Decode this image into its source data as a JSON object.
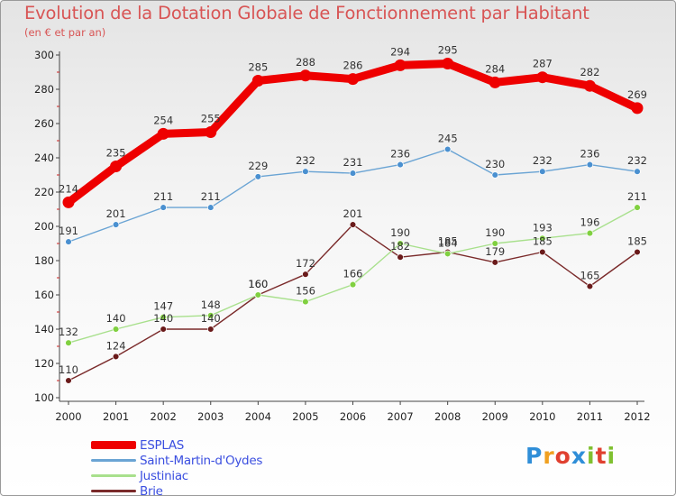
{
  "title": "Evolution de la Dotation Globale de Fonctionnement par Habitant",
  "subtitle": "(en € et par an)",
  "logo": {
    "text": "Proxiti",
    "letters": [
      "P",
      "r",
      "o",
      "x",
      "i",
      "t",
      "i"
    ],
    "colors": [
      "#2f8ed8",
      "#f0a020",
      "#e04030",
      "#2f8ed8",
      "#80c030",
      "#e04030",
      "#80c030"
    ]
  },
  "chart_data": {
    "type": "line",
    "title": "Evolution de la Dotation Globale de Fonctionnement par Habitant",
    "subtitle": "(en € et par an)",
    "xlabel": "",
    "ylabel": "",
    "x": [
      "2000",
      "2001",
      "2002",
      "2003",
      "2004",
      "2005",
      "2006",
      "2007",
      "2008",
      "2009",
      "2010",
      "2011",
      "2012"
    ],
    "ylim": [
      100,
      300
    ],
    "yticks": [
      100,
      120,
      140,
      160,
      180,
      200,
      220,
      240,
      260,
      280,
      300
    ],
    "grid": false,
    "legend_position": "bottom-left",
    "series": [
      {
        "name": "ESPLAS",
        "values": [
          214,
          235,
          254,
          255,
          285,
          288,
          286,
          294,
          295,
          284,
          287,
          282,
          269
        ],
        "color": "#ee0000",
        "style": "thick"
      },
      {
        "name": "Saint-Martin-d'Oydes",
        "values": [
          191,
          201,
          211,
          211,
          229,
          232,
          231,
          236,
          245,
          230,
          232,
          236,
          232
        ],
        "color": "#6aa4d4",
        "marker": "#4a90d0",
        "style": "thin"
      },
      {
        "name": "Justiniac",
        "values": [
          132,
          140,
          147,
          148,
          160,
          156,
          166,
          190,
          184,
          190,
          193,
          196,
          211
        ],
        "color": "#a8e08c",
        "marker": "#80d040",
        "style": "thin"
      },
      {
        "name": "Brie",
        "values": [
          110,
          124,
          140,
          140,
          160,
          172,
          201,
          182,
          185,
          179,
          185,
          165,
          185
        ],
        "color": "#7a2a2a",
        "marker": "#6a1a1a",
        "style": "thin"
      }
    ]
  }
}
